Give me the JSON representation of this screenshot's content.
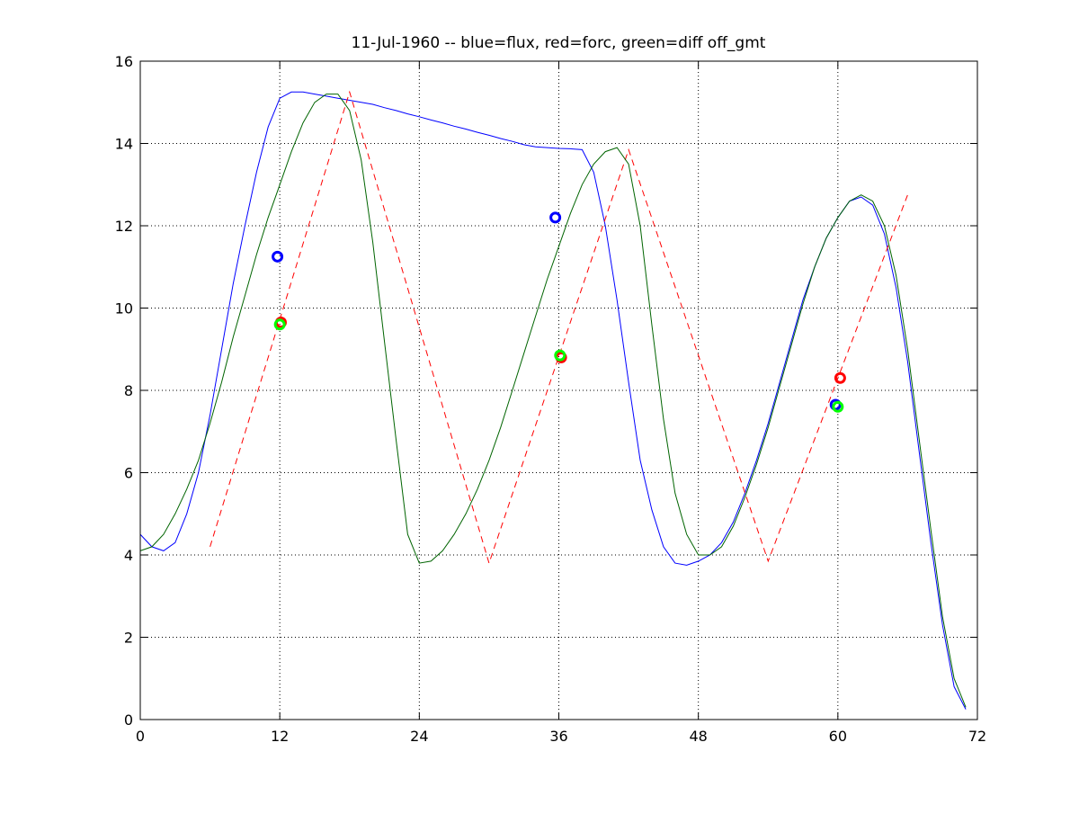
{
  "chart_data": {
    "type": "line",
    "title": "11-Jul-1960 -- blue=flux, red=forc, green=diff off_gmt",
    "xlabel": "",
    "ylabel": "",
    "xlim": [
      0,
      72
    ],
    "ylim": [
      0,
      16
    ],
    "xticks": [
      0,
      12,
      24,
      36,
      48,
      60,
      72
    ],
    "yticks": [
      0,
      2,
      4,
      6,
      8,
      10,
      12,
      14,
      16
    ],
    "grid": true,
    "legend": "none",
    "series": [
      {
        "color": "#0000ff",
        "style": "solid",
        "x": [
          0,
          1,
          2,
          3,
          4,
          5,
          6,
          7,
          8,
          9,
          10,
          11,
          12,
          13,
          14,
          15,
          16,
          17,
          18,
          19,
          20,
          21,
          22,
          23,
          24,
          25,
          26,
          27,
          28,
          29,
          30,
          31,
          32,
          33,
          34,
          35,
          36,
          37,
          38,
          39,
          40,
          41,
          42,
          43,
          44,
          45,
          46,
          47,
          48,
          49,
          50,
          51,
          52,
          53,
          54,
          55,
          56,
          57,
          58,
          59,
          60,
          61,
          62,
          63,
          64,
          65,
          66,
          67,
          68,
          69,
          70,
          71
        ],
        "y": [
          4.5,
          4.2,
          4.1,
          4.3,
          5.0,
          6.0,
          7.4,
          9.0,
          10.6,
          12.0,
          13.3,
          14.4,
          15.1,
          15.25,
          15.25,
          15.2,
          15.15,
          15.1,
          15.05,
          15.0,
          14.95,
          14.87,
          14.8,
          14.72,
          14.65,
          14.57,
          14.5,
          14.42,
          14.35,
          14.27,
          14.2,
          14.12,
          14.05,
          13.97,
          13.92,
          13.9,
          13.88,
          13.87,
          13.85,
          13.3,
          12.0,
          10.2,
          8.2,
          6.3,
          5.1,
          4.2,
          3.8,
          3.75,
          3.85,
          4.0,
          4.3,
          4.8,
          5.5,
          6.3,
          7.2,
          8.2,
          9.2,
          10.2,
          11.0,
          11.7,
          12.2,
          12.6,
          12.7,
          12.5,
          11.8,
          10.5,
          8.7,
          6.5,
          4.3,
          2.3,
          0.8,
          0.25
        ]
      },
      {
        "color": "#ff0000",
        "style": "dashed",
        "x": [
          6,
          18,
          30,
          42,
          54,
          66
        ],
        "y": [
          4.2,
          15.25,
          3.8,
          13.85,
          3.85,
          12.75
        ]
      },
      {
        "color": "#006400",
        "style": "solid",
        "x": [
          0,
          1,
          2,
          3,
          4,
          5,
          6,
          7,
          8,
          9,
          10,
          11,
          12,
          13,
          14,
          15,
          16,
          17,
          18,
          19,
          20,
          21,
          22,
          23,
          24,
          25,
          26,
          27,
          28,
          29,
          30,
          31,
          32,
          33,
          34,
          35,
          36,
          37,
          38,
          39,
          40,
          41,
          42,
          43,
          44,
          45,
          46,
          47,
          48,
          49,
          50,
          51,
          52,
          53,
          54,
          55,
          56,
          57,
          58,
          59,
          60,
          61,
          62,
          63,
          64,
          65,
          66,
          67,
          68,
          69,
          70,
          71
        ],
        "y": [
          4.1,
          4.2,
          4.5,
          5.0,
          5.6,
          6.3,
          7.2,
          8.2,
          9.3,
          10.3,
          11.3,
          12.2,
          13.0,
          13.8,
          14.5,
          15.0,
          15.2,
          15.2,
          14.8,
          13.6,
          11.6,
          9.2,
          6.8,
          4.5,
          3.8,
          3.85,
          4.1,
          4.5,
          5.0,
          5.6,
          6.3,
          7.1,
          8.0,
          8.9,
          9.8,
          10.7,
          11.5,
          12.3,
          13.0,
          13.5,
          13.8,
          13.9,
          13.5,
          12.0,
          9.6,
          7.3,
          5.5,
          4.5,
          4.0,
          4.0,
          4.2,
          4.7,
          5.4,
          6.2,
          7.1,
          8.1,
          9.1,
          10.1,
          11.0,
          11.7,
          12.2,
          12.6,
          12.75,
          12.6,
          12.0,
          10.8,
          9.0,
          6.8,
          4.6,
          2.5,
          1.0,
          0.3
        ]
      }
    ],
    "markers": [
      {
        "color": "#0000ff",
        "x": 11.8,
        "y": 11.25
      },
      {
        "color": "#ff0000",
        "x": 12.1,
        "y": 9.65
      },
      {
        "color": "#00ff00",
        "x": 12.0,
        "y": 9.6
      },
      {
        "color": "#0000ff",
        "x": 35.7,
        "y": 12.2
      },
      {
        "color": "#ff0000",
        "x": 36.2,
        "y": 8.8
      },
      {
        "color": "#00ff00",
        "x": 36.1,
        "y": 8.85
      },
      {
        "color": "#0000ff",
        "x": 59.8,
        "y": 7.65
      },
      {
        "color": "#ff0000",
        "x": 60.2,
        "y": 8.3
      },
      {
        "color": "#00ff00",
        "x": 60.0,
        "y": 7.6
      }
    ]
  }
}
